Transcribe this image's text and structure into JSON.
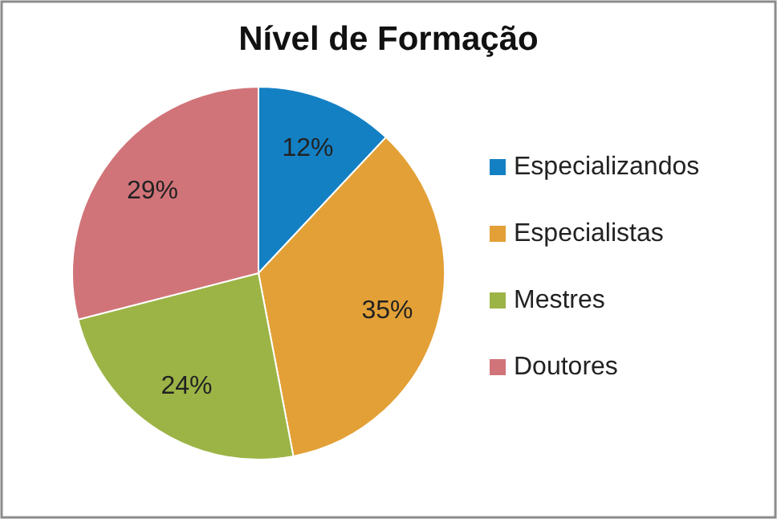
{
  "chart_data": {
    "type": "pie",
    "title": "Nível de Formação",
    "categories": [
      "Especializandos",
      "Especialistas",
      "Mestres",
      "Doutores"
    ],
    "values": [
      12,
      35,
      24,
      29
    ],
    "colors": [
      "#1480c4",
      "#e3a036",
      "#9cb446",
      "#d17479"
    ],
    "value_labels": [
      "12%",
      "35%",
      "24%",
      "29%"
    ],
    "legend": "right"
  }
}
